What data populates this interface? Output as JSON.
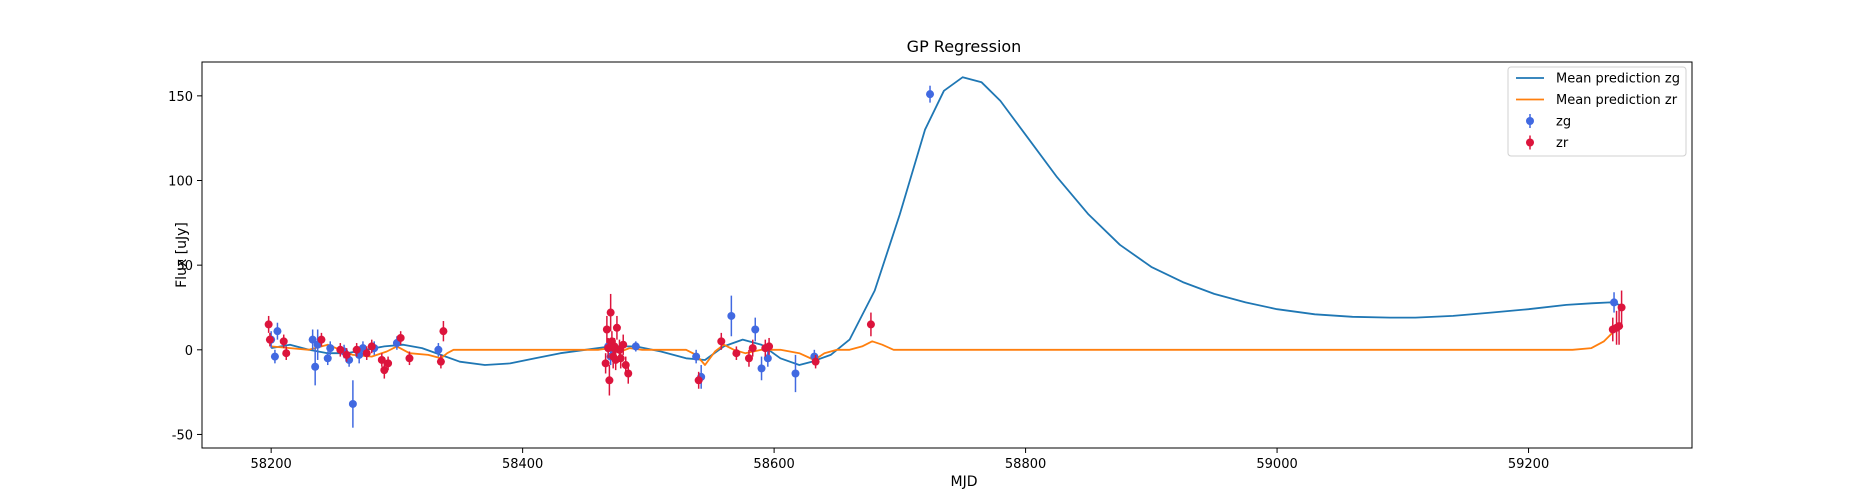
{
  "chart_data": {
    "type": "scatter",
    "title": "GP Regression",
    "xlabel": "MJD",
    "ylabel": "Flux [uJy]",
    "xlim": [
      58145,
      59330
    ],
    "ylim": [
      -58,
      170
    ],
    "xticks": [
      58200,
      58400,
      58600,
      58800,
      59000,
      59200
    ],
    "yticks": [
      -50,
      0,
      50,
      100,
      150
    ],
    "grid": false,
    "legend_position": "top-right",
    "legend": [
      "Mean prediction zg",
      "Mean prediction zr",
      "zg",
      "zr"
    ],
    "series": [
      {
        "name": "Mean prediction zg",
        "kind": "line",
        "color": "#1f77b4",
        "points": [
          [
            58200,
            1
          ],
          [
            58215,
            3
          ],
          [
            58230,
            0
          ],
          [
            58245,
            -2
          ],
          [
            58260,
            -2
          ],
          [
            58275,
            0
          ],
          [
            58290,
            2
          ],
          [
            58305,
            3
          ],
          [
            58320,
            1
          ],
          [
            58335,
            -3
          ],
          [
            58350,
            -7
          ],
          [
            58370,
            -9
          ],
          [
            58390,
            -8
          ],
          [
            58410,
            -5
          ],
          [
            58430,
            -2
          ],
          [
            58450,
            0
          ],
          [
            58470,
            2
          ],
          [
            58490,
            2
          ],
          [
            58510,
            -1
          ],
          [
            58530,
            -5
          ],
          [
            58545,
            -6
          ],
          [
            58560,
            2
          ],
          [
            58575,
            6
          ],
          [
            58590,
            3
          ],
          [
            58605,
            -5
          ],
          [
            58620,
            -9
          ],
          [
            58630,
            -7
          ],
          [
            58645,
            -3
          ],
          [
            58660,
            6
          ],
          [
            58680,
            35
          ],
          [
            58700,
            80
          ],
          [
            58720,
            130
          ],
          [
            58735,
            153
          ],
          [
            58750,
            161
          ],
          [
            58765,
            158
          ],
          [
            58780,
            147
          ],
          [
            58800,
            127
          ],
          [
            58825,
            102
          ],
          [
            58850,
            80
          ],
          [
            58875,
            62
          ],
          [
            58900,
            49
          ],
          [
            58925,
            40
          ],
          [
            58950,
            33
          ],
          [
            58975,
            28
          ],
          [
            59000,
            24
          ],
          [
            59030,
            21
          ],
          [
            59060,
            19.5
          ],
          [
            59090,
            19
          ],
          [
            59110,
            19
          ],
          [
            59140,
            20
          ],
          [
            59170,
            22
          ],
          [
            59200,
            24
          ],
          [
            59230,
            26.5
          ],
          [
            59250,
            27.5
          ],
          [
            59265,
            28
          ],
          [
            59275,
            26
          ]
        ]
      },
      {
        "name": "Mean prediction zr",
        "kind": "line",
        "color": "#ff7f0e",
        "points": [
          [
            58200,
            2
          ],
          [
            58215,
            1
          ],
          [
            58230,
            0
          ],
          [
            58245,
            3
          ],
          [
            58255,
            0
          ],
          [
            58265,
            -3
          ],
          [
            58280,
            -4
          ],
          [
            58292,
            -1
          ],
          [
            58300,
            2
          ],
          [
            58310,
            -2
          ],
          [
            58325,
            -3
          ],
          [
            58335,
            -5
          ],
          [
            58340,
            -2
          ],
          [
            58345,
            0
          ],
          [
            58400,
            0
          ],
          [
            58460,
            0
          ],
          [
            58470,
            1
          ],
          [
            58478,
            -1
          ],
          [
            58485,
            1
          ],
          [
            58495,
            0
          ],
          [
            58530,
            0
          ],
          [
            58538,
            -3
          ],
          [
            58545,
            -9
          ],
          [
            58553,
            -1
          ],
          [
            58560,
            3
          ],
          [
            58568,
            0
          ],
          [
            58577,
            -2
          ],
          [
            58590,
            0
          ],
          [
            58605,
            0
          ],
          [
            58620,
            -2
          ],
          [
            58632,
            -6
          ],
          [
            58640,
            -2
          ],
          [
            58650,
            0
          ],
          [
            58660,
            0
          ],
          [
            58670,
            2
          ],
          [
            58678,
            5
          ],
          [
            58686,
            3
          ],
          [
            58695,
            0
          ],
          [
            58750,
            0
          ],
          [
            58900,
            0
          ],
          [
            59100,
            0
          ],
          [
            59235,
            0
          ],
          [
            59250,
            1
          ],
          [
            59260,
            5
          ],
          [
            59268,
            11
          ],
          [
            59275,
            14
          ]
        ]
      },
      {
        "name": "zg",
        "kind": "errorbar",
        "color": "#4169e1",
        "points": [
          {
            "x": 58200,
            "y": 6,
            "err": 5
          },
          {
            "x": 58203,
            "y": -4,
            "err": 4
          },
          {
            "x": 58205,
            "y": 11,
            "err": 5
          },
          {
            "x": 58233,
            "y": 6,
            "err": 6
          },
          {
            "x": 58235,
            "y": -10,
            "err": 11
          },
          {
            "x": 58237,
            "y": 3,
            "err": 9
          },
          {
            "x": 58245,
            "y": -5,
            "err": 4
          },
          {
            "x": 58247,
            "y": 1,
            "err": 4
          },
          {
            "x": 58258,
            "y": -1,
            "err": 4
          },
          {
            "x": 58262,
            "y": -6,
            "err": 4
          },
          {
            "x": 58265,
            "y": -32,
            "err": 14
          },
          {
            "x": 58270,
            "y": -3,
            "err": 5
          },
          {
            "x": 58273,
            "y": 1,
            "err": 4
          },
          {
            "x": 58282,
            "y": 1,
            "err": 4
          },
          {
            "x": 58300,
            "y": 4,
            "err": 4
          },
          {
            "x": 58333,
            "y": 0,
            "err": 4
          },
          {
            "x": 58468,
            "y": 2,
            "err": 4
          },
          {
            "x": 58470,
            "y": -4,
            "err": 5
          },
          {
            "x": 58472,
            "y": 0,
            "err": 5
          },
          {
            "x": 58490,
            "y": 2,
            "err": 3
          },
          {
            "x": 58538,
            "y": -4,
            "err": 4
          },
          {
            "x": 58542,
            "y": -16,
            "err": 7
          },
          {
            "x": 58566,
            "y": 20,
            "err": 12
          },
          {
            "x": 58585,
            "y": 12,
            "err": 7
          },
          {
            "x": 58590,
            "y": -11,
            "err": 7
          },
          {
            "x": 58595,
            "y": -5,
            "err": 5
          },
          {
            "x": 58617,
            "y": -14,
            "err": 11
          },
          {
            "x": 58632,
            "y": -4,
            "err": 4
          },
          {
            "x": 58724,
            "y": 151,
            "err": 5
          },
          {
            "x": 59268,
            "y": 28,
            "err": 6
          }
        ]
      },
      {
        "name": "zr",
        "kind": "errorbar",
        "color": "#dc143c",
        "points": [
          {
            "x": 58198,
            "y": 15,
            "err": 5
          },
          {
            "x": 58199,
            "y": 6,
            "err": 4
          },
          {
            "x": 58210,
            "y": 5,
            "err": 4
          },
          {
            "x": 58212,
            "y": -2,
            "err": 4
          },
          {
            "x": 58240,
            "y": 6,
            "err": 4
          },
          {
            "x": 58255,
            "y": 0,
            "err": 4
          },
          {
            "x": 58260,
            "y": -3,
            "err": 4
          },
          {
            "x": 58268,
            "y": 0,
            "err": 4
          },
          {
            "x": 58276,
            "y": -2,
            "err": 4
          },
          {
            "x": 58280,
            "y": 2,
            "err": 4
          },
          {
            "x": 58288,
            "y": -6,
            "err": 4
          },
          {
            "x": 58290,
            "y": -12,
            "err": 5
          },
          {
            "x": 58293,
            "y": -8,
            "err": 4
          },
          {
            "x": 58303,
            "y": 7,
            "err": 4
          },
          {
            "x": 58310,
            "y": -5,
            "err": 4
          },
          {
            "x": 58335,
            "y": -7,
            "err": 4
          },
          {
            "x": 58337,
            "y": 11,
            "err": 6
          },
          {
            "x": 58466,
            "y": -8,
            "err": 6
          },
          {
            "x": 58467,
            "y": 12,
            "err": 8
          },
          {
            "x": 58468,
            "y": 1,
            "err": 6
          },
          {
            "x": 58469,
            "y": -18,
            "err": 9
          },
          {
            "x": 58470,
            "y": 22,
            "err": 11
          },
          {
            "x": 58471,
            "y": 5,
            "err": 6
          },
          {
            "x": 58472,
            "y": -4,
            "err": 7
          },
          {
            "x": 58473,
            "y": 2,
            "err": 5
          },
          {
            "x": 58474,
            "y": -6,
            "err": 6
          },
          {
            "x": 58475,
            "y": 13,
            "err": 7
          },
          {
            "x": 58477,
            "y": 0,
            "err": 6
          },
          {
            "x": 58478,
            "y": -5,
            "err": 6
          },
          {
            "x": 58480,
            "y": 3,
            "err": 6
          },
          {
            "x": 58482,
            "y": -9,
            "err": 5
          },
          {
            "x": 58484,
            "y": -14,
            "err": 6
          },
          {
            "x": 58540,
            "y": -18,
            "err": 5
          },
          {
            "x": 58558,
            "y": 5,
            "err": 5
          },
          {
            "x": 58570,
            "y": -2,
            "err": 4
          },
          {
            "x": 58580,
            "y": -5,
            "err": 5
          },
          {
            "x": 58583,
            "y": 1,
            "err": 5
          },
          {
            "x": 58593,
            "y": 1,
            "err": 5
          },
          {
            "x": 58596,
            "y": 2,
            "err": 5
          },
          {
            "x": 58633,
            "y": -7,
            "err": 4
          },
          {
            "x": 58677,
            "y": 15,
            "err": 7
          },
          {
            "x": 59267,
            "y": 12,
            "err": 7
          },
          {
            "x": 59270,
            "y": 13,
            "err": 10
          },
          {
            "x": 59272,
            "y": 14,
            "err": 11
          },
          {
            "x": 59274,
            "y": 25,
            "err": 10
          }
        ]
      }
    ]
  }
}
